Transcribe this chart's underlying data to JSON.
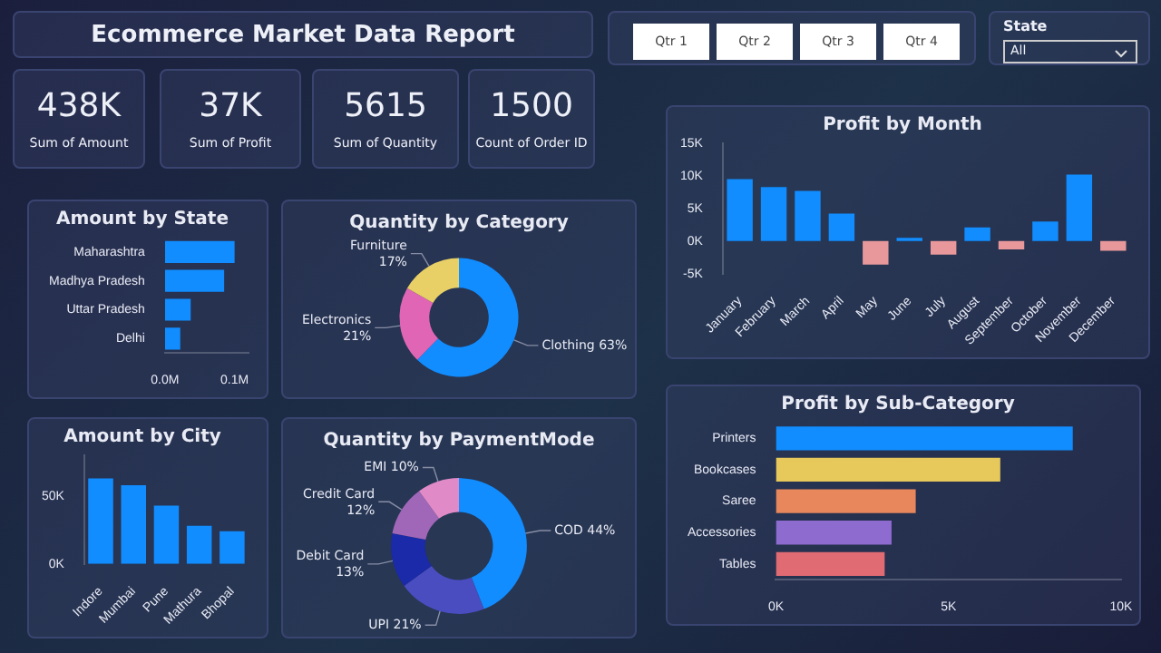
{
  "chart_data": [
    {
      "type": "other",
      "title": "Ecommerce Market Data Report"
    },
    {
      "type": "other",
      "annotations": [
        "Qtr 1",
        "Qtr 2",
        "Qtr 3",
        "Qtr 4"
      ]
    },
    {
      "type": "other",
      "title": "State",
      "annotations": [
        "All"
      ]
    },
    {
      "type": "other",
      "annotations": [
        "438K",
        "Sum of Amount"
      ]
    },
    {
      "type": "other",
      "annotations": [
        "37K",
        "Sum of Profit"
      ]
    },
    {
      "type": "other",
      "annotations": [
        "5615",
        "Sum of Quantity"
      ]
    },
    {
      "type": "other",
      "annotations": [
        "1500",
        "Count of Order ID"
      ]
    },
    {
      "type": "bar",
      "orientation": "horizontal",
      "title": "Amount by State",
      "categories": [
        "Maharashtra",
        "Madhya Pradesh",
        "Uttar Pradesh",
        "Delhi"
      ],
      "values": [
        0.1,
        0.085,
        0.037,
        0.022
      ],
      "color": "#118dff",
      "xlim": [
        0,
        0.12
      ],
      "xticks": [
        {
          "value": 0,
          "label": "0.0M"
        },
        {
          "value": 0.1,
          "label": "0.1M"
        }
      ]
    },
    {
      "type": "donut",
      "title": "Quantity by Category",
      "categories": [
        "Clothing",
        "Electronics",
        "Furniture"
      ],
      "values": [
        63,
        21,
        17
      ],
      "value_labels": [
        "63%",
        "21%",
        "17%"
      ],
      "colors": [
        "#118dff",
        "#e066b5",
        "#e8cf66"
      ]
    },
    {
      "type": "bar",
      "title": "Profit by Month",
      "categories": [
        "January",
        "February",
        "March",
        "April",
        "May",
        "June",
        "July",
        "August",
        "September",
        "October",
        "November",
        "December"
      ],
      "values": [
        9.5,
        8.3,
        7.7,
        4.2,
        -3.6,
        0.5,
        -2.1,
        2.1,
        -1.3,
        3.0,
        10.2,
        -1.5
      ],
      "colors": [
        "#118dff",
        "#118dff",
        "#118dff",
        "#118dff",
        "#e8989a",
        "#118dff",
        "#e8989a",
        "#118dff",
        "#e8989a",
        "#118dff",
        "#118dff",
        "#e8989a"
      ],
      "ylim": [
        -5,
        15
      ],
      "yticks": [
        {
          "value": -5,
          "label": "-5K"
        },
        {
          "value": 0,
          "label": "0K"
        },
        {
          "value": 5,
          "label": "5K"
        },
        {
          "value": 10,
          "label": "10K"
        },
        {
          "value": 15,
          "label": "15K"
        }
      ]
    },
    {
      "type": "bar",
      "title": "Amount by City",
      "categories": [
        "Indore",
        "Mumbai",
        "Pune",
        "Mathura",
        "Bhopal"
      ],
      "values": [
        63,
        58,
        43,
        28,
        24
      ],
      "color": "#118dff",
      "ylim": [
        0,
        80
      ],
      "yticks": [
        {
          "value": 0,
          "label": "0K"
        },
        {
          "value": 50,
          "label": "50K"
        }
      ]
    },
    {
      "type": "donut",
      "title": "Quantity by PaymentMode",
      "categories": [
        "COD",
        "UPI",
        "Debit Card",
        "Credit Card",
        "EMI"
      ],
      "values": [
        44,
        21,
        13,
        12,
        10
      ],
      "value_labels": [
        "44%",
        "21%",
        "13%",
        "12%",
        "10%"
      ],
      "colors": [
        "#118dff",
        "#4a4dbf",
        "#1a2aa8",
        "#a066b8",
        "#e08ac8"
      ]
    },
    {
      "type": "bar",
      "orientation": "horizontal",
      "title": "Profit by Sub-Category",
      "categories": [
        "Printers",
        "Bookcases",
        "Saree",
        "Accessories",
        "Tables"
      ],
      "values": [
        8.6,
        6.5,
        4.05,
        3.35,
        3.15
      ],
      "colors": [
        "#118dff",
        "#e6c95a",
        "#e8875b",
        "#8e6bcf",
        "#e06b73"
      ],
      "xlim": [
        0,
        10
      ],
      "xticks": [
        {
          "value": 0,
          "label": "0K"
        },
        {
          "value": 5,
          "label": "5K"
        },
        {
          "value": 10,
          "label": "10K"
        }
      ]
    }
  ]
}
